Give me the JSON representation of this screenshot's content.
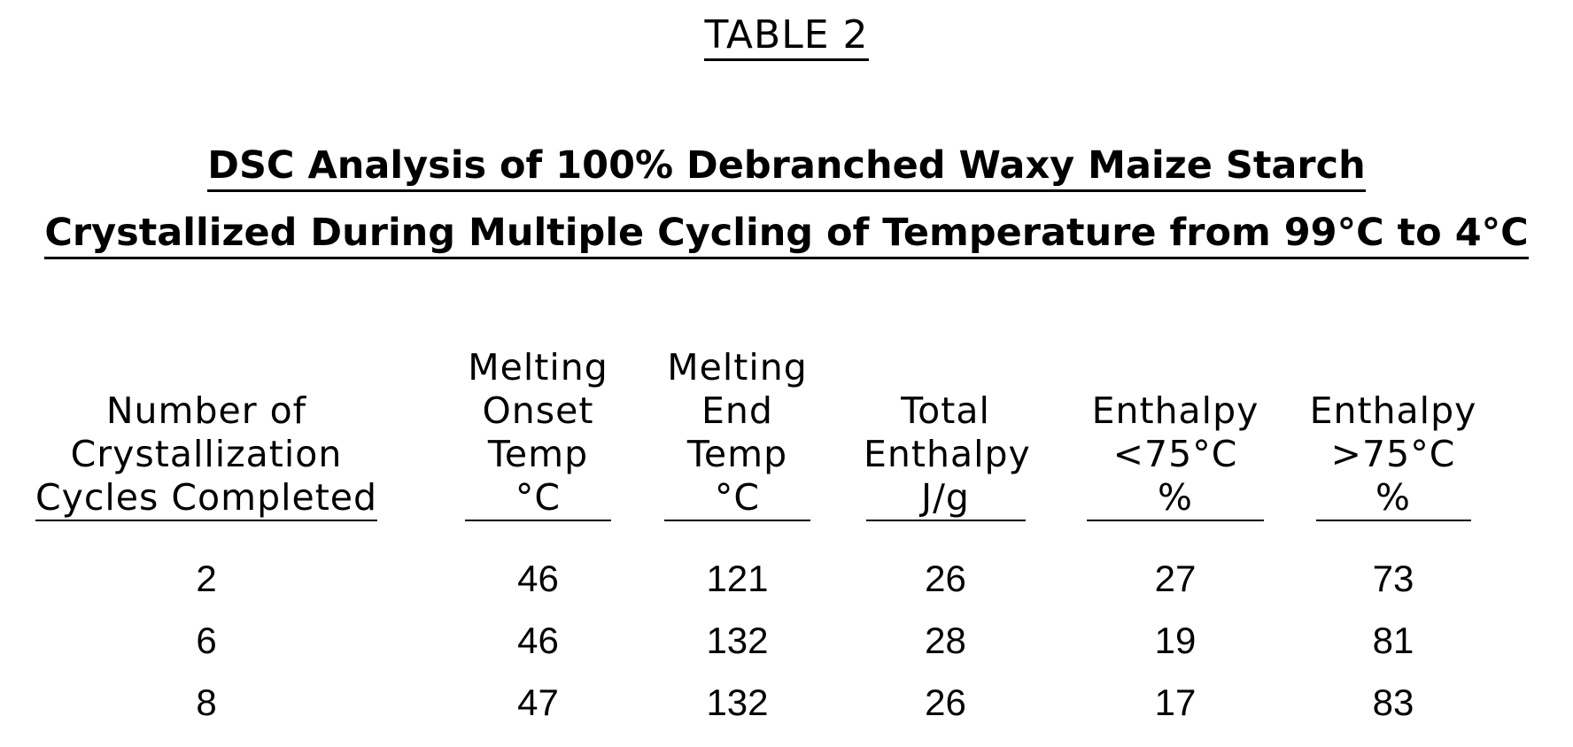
{
  "table_label": "TABLE 2",
  "title": {
    "line1": "DSC Analysis of 100% Debranched Waxy Maize Starch",
    "line2": "Crystallized During Multiple Cycling of Temperature from 99°C to 4°C"
  },
  "columns": [
    {
      "lines": [
        "Number of",
        "Crystallization",
        "Cycles Completed"
      ],
      "units": ""
    },
    {
      "lines": [
        "Melting",
        "Onset",
        "Temp"
      ],
      "units": "°C"
    },
    {
      "lines": [
        "Melting",
        "End",
        "Temp"
      ],
      "units": "°C"
    },
    {
      "lines": [
        "Total",
        "Enthalpy"
      ],
      "units": "J/g"
    },
    {
      "lines": [
        "Enthalpy",
        "<75°C"
      ],
      "units": "%"
    },
    {
      "lines": [
        "Enthalpy",
        ">75°C"
      ],
      "units": "%"
    }
  ],
  "rows": [
    [
      "2",
      "46",
      "121",
      "26",
      "27",
      "73"
    ],
    [
      "6",
      "46",
      "132",
      "28",
      "19",
      "81"
    ],
    [
      "8",
      "47",
      "132",
      "26",
      "17",
      "83"
    ]
  ]
}
